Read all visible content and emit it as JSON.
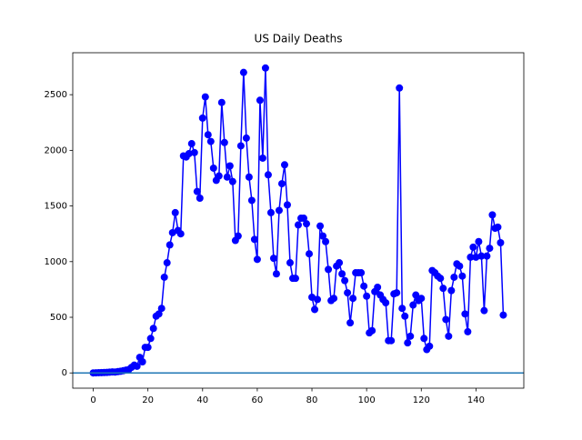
{
  "chart_data": {
    "type": "line",
    "title": "US Daily Deaths",
    "x": [
      0,
      1,
      2,
      3,
      4,
      5,
      6,
      7,
      8,
      9,
      10,
      11,
      12,
      13,
      14,
      15,
      16,
      17,
      18,
      19,
      20,
      21,
      22,
      23,
      24,
      25,
      26,
      27,
      28,
      29,
      30,
      31,
      32,
      33,
      34,
      35,
      36,
      37,
      38,
      39,
      40,
      41,
      42,
      43,
      44,
      45,
      46,
      47,
      48,
      49,
      50,
      51,
      52,
      53,
      54,
      55,
      56,
      57,
      58,
      59,
      60,
      61,
      62,
      63,
      64,
      65,
      66,
      67,
      68,
      69,
      70,
      71,
      72,
      73,
      74,
      75,
      76,
      77,
      78,
      79,
      80,
      81,
      82,
      83,
      84,
      85,
      86,
      87,
      88,
      89,
      90,
      91,
      92,
      93,
      94,
      95,
      96,
      97,
      98,
      99,
      100,
      101,
      102,
      103,
      104,
      105,
      106,
      107,
      108,
      109,
      110,
      111,
      112,
      113,
      114,
      115,
      116,
      117,
      118,
      119,
      120,
      121,
      122,
      123,
      124,
      125,
      126,
      127,
      128,
      129,
      130,
      131,
      132,
      133,
      134,
      135,
      136,
      137,
      138,
      139,
      140,
      141,
      142,
      143,
      144,
      145,
      146,
      147,
      148,
      149,
      150
    ],
    "series": [
      {
        "name": "US",
        "color": "#0000ff",
        "values": [
          0,
          1,
          2,
          3,
          4,
          5,
          7,
          9,
          8,
          12,
          15,
          20,
          25,
          30,
          50,
          70,
          60,
          140,
          100,
          230,
          230,
          310,
          400,
          510,
          530,
          580,
          860,
          990,
          1150,
          1260,
          1440,
          1280,
          1250,
          1950,
          1940,
          1970,
          2060,
          1980,
          1630,
          1570,
          2290,
          2480,
          2140,
          2080,
          1840,
          1730,
          1770,
          2430,
          2070,
          1760,
          1860,
          1720,
          1190,
          1230,
          2040,
          2700,
          2110,
          1760,
          1550,
          1200,
          1020,
          2450,
          1930,
          2740,
          1780,
          1440,
          1030,
          890,
          1460,
          1700,
          1870,
          1510,
          990,
          850,
          850,
          1330,
          1390,
          1390,
          1340,
          1070,
          680,
          570,
          660,
          1320,
          1230,
          1180,
          930,
          650,
          670,
          960,
          990,
          890,
          830,
          720,
          450,
          670,
          900,
          900,
          900,
          780,
          690,
          360,
          380,
          730,
          770,
          700,
          660,
          630,
          290,
          290,
          710,
          720,
          2560,
          580,
          510,
          270,
          330,
          610,
          700,
          650,
          670,
          310,
          210,
          240,
          920,
          900,
          870,
          850,
          760,
          480,
          330,
          740,
          860,
          980,
          960,
          870,
          530,
          370,
          1040,
          1130,
          1040,
          1180,
          1050,
          560,
          1050,
          1120,
          1420,
          1300,
          1310,
          1170,
          520
        ]
      }
    ],
    "hline": {
      "value": 0,
      "color": "#1f77b4"
    },
    "xlim": [
      -7.5,
      157.5
    ],
    "xticks": [
      0,
      20,
      40,
      60,
      80,
      100,
      120,
      140
    ],
    "ylim": [
      -137,
      2877
    ],
    "yticks": [
      0,
      500,
      1000,
      1500,
      2000,
      2500
    ]
  }
}
